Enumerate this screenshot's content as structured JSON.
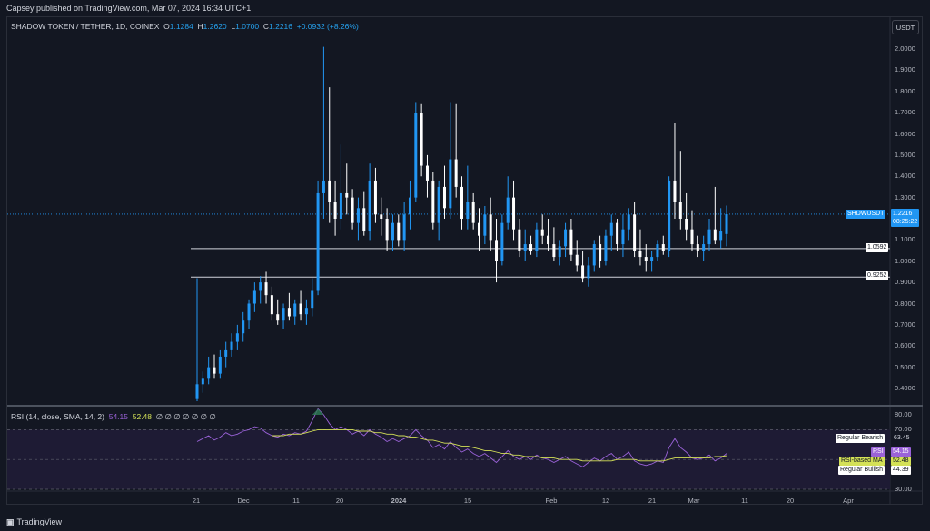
{
  "header": {
    "published": "Capsey published on TradingView.com, Mar 07, 2024 16:34 UTC+1"
  },
  "legend": {
    "symbol": "SHADOW TOKEN / TETHER, 1D, COINEX",
    "o_key": "O",
    "o_val": "1.1284",
    "h_key": "H",
    "h_val": "1.2620",
    "l_key": "L",
    "l_val": "1.0700",
    "c_key": "C",
    "c_val": "1.2216",
    "change": "+0.0932 (+8.26%)"
  },
  "currency_button": "USDT",
  "price_axis": [
    "2.0000",
    "1.9000",
    "1.8000",
    "1.7000",
    "1.6000",
    "1.5000",
    "1.4000",
    "1.3000",
    "1.2000",
    "1.1000",
    "1.0000",
    "0.9000",
    "0.8000",
    "0.7000",
    "0.6000",
    "0.5000",
    "0.4000"
  ],
  "price_tags": {
    "symbol_tag": "SHDWUSDT",
    "last_price": "1.2216",
    "countdown": "08:25:22",
    "level1": "1.0592",
    "level2": "0.9252"
  },
  "rsi": {
    "legend": "RSI (14, close, SMA, 14, 2)",
    "rsi_val": "54.15",
    "ma_val": "52.48",
    "nulls": "∅ ∅ ∅ ∅ ∅ ∅ ∅",
    "axis": [
      "80.00",
      "70.00",
      "30.00"
    ],
    "tags": {
      "regular_bearish": "Regular Bearish",
      "regular_bearish_val": "63.45",
      "rsi_label": "RSI",
      "rsi_value": "54.15",
      "ma_label": "RSI-based MA",
      "ma_value": "52.48",
      "regular_bullish": "Regular Bullish",
      "regular_bullish_val": "44.39"
    }
  },
  "time_axis": [
    "21",
    "Dec",
    "11",
    "20",
    "2024",
    "15",
    "Feb",
    "12",
    "21",
    "Mar",
    "11",
    "20",
    "Apr"
  ],
  "footer": {
    "logo_text": "TradingView"
  },
  "colors": {
    "bg": "#131722",
    "up": "#2196f3",
    "down": "#ffffff",
    "rsi": "#9a62d8",
    "rsi_ma": "#d4e157"
  },
  "chart_data": {
    "type": "candlestick",
    "price_range": [
      0.35,
      2.05
    ],
    "horizontal_levels": [
      1.0592,
      0.9252
    ],
    "last_price": 1.2216,
    "candles": [
      [
        0.35,
        0.92,
        0.34,
        0.42
      ],
      [
        0.42,
        0.48,
        0.38,
        0.45
      ],
      [
        0.45,
        0.55,
        0.42,
        0.5
      ],
      [
        0.5,
        0.56,
        0.45,
        0.47
      ],
      [
        0.47,
        0.58,
        0.45,
        0.55
      ],
      [
        0.55,
        0.62,
        0.5,
        0.58
      ],
      [
        0.58,
        0.66,
        0.55,
        0.62
      ],
      [
        0.62,
        0.7,
        0.58,
        0.66
      ],
      [
        0.66,
        0.76,
        0.62,
        0.72
      ],
      [
        0.72,
        0.82,
        0.68,
        0.8
      ],
      [
        0.8,
        0.9,
        0.76,
        0.86
      ],
      [
        0.86,
        0.93,
        0.8,
        0.9
      ],
      [
        0.9,
        0.95,
        0.8,
        0.84
      ],
      [
        0.84,
        0.88,
        0.72,
        0.75
      ],
      [
        0.75,
        0.82,
        0.7,
        0.72
      ],
      [
        0.72,
        0.8,
        0.68,
        0.78
      ],
      [
        0.78,
        0.85,
        0.72,
        0.74
      ],
      [
        0.74,
        0.82,
        0.7,
        0.8
      ],
      [
        0.8,
        0.86,
        0.72,
        0.75
      ],
      [
        0.75,
        0.82,
        0.7,
        0.78
      ],
      [
        0.78,
        0.92,
        0.74,
        0.86
      ],
      [
        0.86,
        1.38,
        0.84,
        1.32
      ],
      [
        1.32,
        2.01,
        1.2,
        1.38
      ],
      [
        1.38,
        1.82,
        1.18,
        1.28
      ],
      [
        1.28,
        1.38,
        1.12,
        1.2
      ],
      [
        1.2,
        1.55,
        1.15,
        1.32
      ],
      [
        1.32,
        1.46,
        1.22,
        1.3
      ],
      [
        1.3,
        1.34,
        1.15,
        1.18
      ],
      [
        1.18,
        1.3,
        1.1,
        1.25
      ],
      [
        1.25,
        1.33,
        1.12,
        1.14
      ],
      [
        1.14,
        1.46,
        1.1,
        1.38
      ],
      [
        1.38,
        1.44,
        1.18,
        1.22
      ],
      [
        1.22,
        1.3,
        1.12,
        1.2
      ],
      [
        1.2,
        1.25,
        1.05,
        1.1
      ],
      [
        1.1,
        1.22,
        1.05,
        1.18
      ],
      [
        1.18,
        1.22,
        1.07,
        1.1
      ],
      [
        1.1,
        1.28,
        1.05,
        1.22
      ],
      [
        1.22,
        1.38,
        1.15,
        1.3
      ],
      [
        1.3,
        1.75,
        1.28,
        1.7
      ],
      [
        1.7,
        1.74,
        1.4,
        1.45
      ],
      [
        1.45,
        1.5,
        1.3,
        1.38
      ],
      [
        1.38,
        1.42,
        1.15,
        1.18
      ],
      [
        1.18,
        1.38,
        1.1,
        1.35
      ],
      [
        1.35,
        1.45,
        1.2,
        1.25
      ],
      [
        1.25,
        1.75,
        1.2,
        1.48
      ],
      [
        1.48,
        1.74,
        1.3,
        1.35
      ],
      [
        1.35,
        1.4,
        1.15,
        1.2
      ],
      [
        1.2,
        1.45,
        1.15,
        1.28
      ],
      [
        1.28,
        1.32,
        1.15,
        1.18
      ],
      [
        1.18,
        1.25,
        1.05,
        1.12
      ],
      [
        1.12,
        1.26,
        1.08,
        1.22
      ],
      [
        1.22,
        1.3,
        1.05,
        1.1
      ],
      [
        1.1,
        1.2,
        0.9,
        1.0
      ],
      [
        1.0,
        1.22,
        0.98,
        1.18
      ],
      [
        1.18,
        1.4,
        1.15,
        1.3
      ],
      [
        1.3,
        1.38,
        1.1,
        1.15
      ],
      [
        1.15,
        1.2,
        1.02,
        1.05
      ],
      [
        1.05,
        1.15,
        1.0,
        1.08
      ],
      [
        1.08,
        1.12,
        1.03,
        1.05
      ],
      [
        1.05,
        1.18,
        1.02,
        1.15
      ],
      [
        1.15,
        1.22,
        1.08,
        1.12
      ],
      [
        1.12,
        1.2,
        1.05,
        1.08
      ],
      [
        1.08,
        1.16,
        1.0,
        1.02
      ],
      [
        1.02,
        1.1,
        0.98,
        1.07
      ],
      [
        1.07,
        1.18,
        1.02,
        1.15
      ],
      [
        1.15,
        1.2,
        1.0,
        1.03
      ],
      [
        1.03,
        1.1,
        0.95,
        0.98
      ],
      [
        0.98,
        1.05,
        0.9,
        0.92
      ],
      [
        0.92,
        1.02,
        0.88,
        0.98
      ],
      [
        0.98,
        1.1,
        0.95,
        1.08
      ],
      [
        1.08,
        1.12,
        0.97,
        1.0
      ],
      [
        1.0,
        1.15,
        0.98,
        1.12
      ],
      [
        1.12,
        1.22,
        1.05,
        1.18
      ],
      [
        1.18,
        1.2,
        1.05,
        1.08
      ],
      [
        1.08,
        1.22,
        1.02,
        1.15
      ],
      [
        1.15,
        1.25,
        1.1,
        1.22
      ],
      [
        1.22,
        1.28,
        1.02,
        1.05
      ],
      [
        1.05,
        1.15,
        0.98,
        1.02
      ],
      [
        1.02,
        1.08,
        0.95,
        1.0
      ],
      [
        1.0,
        1.05,
        0.95,
        1.02
      ],
      [
        1.02,
        1.1,
        1.0,
        1.08
      ],
      [
        1.08,
        1.12,
        1.03,
        1.05
      ],
      [
        1.05,
        1.4,
        1.02,
        1.38
      ],
      [
        1.38,
        1.65,
        1.2,
        1.28
      ],
      [
        1.28,
        1.52,
        1.15,
        1.2
      ],
      [
        1.2,
        1.32,
        1.1,
        1.15
      ],
      [
        1.15,
        1.24,
        1.05,
        1.08
      ],
      [
        1.08,
        1.12,
        1.02,
        1.05
      ],
      [
        1.05,
        1.12,
        1.0,
        1.08
      ],
      [
        1.08,
        1.2,
        1.05,
        1.15
      ],
      [
        1.15,
        1.35,
        1.08,
        1.1
      ],
      [
        1.1,
        1.25,
        1.06,
        1.14
      ],
      [
        1.128,
        1.262,
        1.07,
        1.2216
      ]
    ],
    "rsi_range": [
      25,
      85
    ],
    "rsi": [
      62,
      64,
      66,
      63,
      65,
      68,
      66,
      67,
      69,
      70,
      72,
      71,
      68,
      66,
      65,
      67,
      66,
      68,
      67,
      69,
      76,
      84,
      80,
      74,
      70,
      72,
      70,
      67,
      69,
      66,
      70,
      67,
      65,
      62,
      64,
      62,
      64,
      66,
      70,
      66,
      63,
      58,
      60,
      57,
      62,
      58,
      55,
      57,
      54,
      52,
      54,
      51,
      48,
      52,
      56,
      52,
      50,
      52,
      50,
      53,
      51,
      50,
      48,
      50,
      52,
      49,
      47,
      45,
      48,
      51,
      49,
      52,
      54,
      50,
      52,
      55,
      49,
      47,
      46,
      47,
      49,
      48,
      58,
      64,
      58,
      55,
      51,
      50,
      51,
      53,
      49,
      51,
      54
    ],
    "rsi_ma": [
      null,
      null,
      null,
      null,
      null,
      null,
      null,
      null,
      null,
      null,
      null,
      null,
      null,
      66,
      66,
      66,
      67,
      67,
      67,
      68,
      69,
      70,
      70,
      70,
      70,
      70,
      70,
      70,
      69,
      69,
      69,
      68,
      68,
      67,
      67,
      66,
      66,
      65,
      65,
      64,
      63,
      63,
      62,
      61,
      61,
      60,
      59,
      59,
      58,
      57,
      56,
      56,
      55,
      54,
      54,
      53,
      53,
      52,
      52,
      52,
      51,
      51,
      51,
      50,
      50,
      50,
      50,
      49,
      49,
      49,
      49,
      49,
      49,
      50,
      50,
      50,
      50,
      49,
      49,
      49,
      49,
      49,
      50,
      51,
      51,
      51,
      51,
      51,
      51,
      51,
      52,
      52,
      52.48
    ]
  }
}
